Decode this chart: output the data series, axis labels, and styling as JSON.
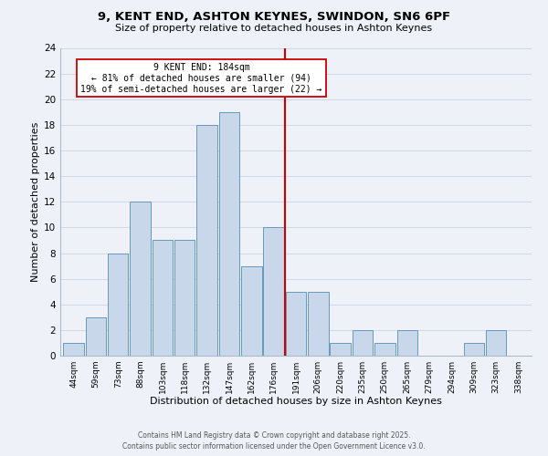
{
  "title": "9, KENT END, ASHTON KEYNES, SWINDON, SN6 6PF",
  "subtitle": "Size of property relative to detached houses in Ashton Keynes",
  "xlabel": "Distribution of detached houses by size in Ashton Keynes",
  "ylabel": "Number of detached properties",
  "bar_labels": [
    "44sqm",
    "59sqm",
    "73sqm",
    "88sqm",
    "103sqm",
    "118sqm",
    "132sqm",
    "147sqm",
    "162sqm",
    "176sqm",
    "191sqm",
    "206sqm",
    "220sqm",
    "235sqm",
    "250sqm",
    "265sqm",
    "279sqm",
    "294sqm",
    "309sqm",
    "323sqm",
    "338sqm"
  ],
  "bar_values": [
    1,
    3,
    8,
    12,
    9,
    9,
    18,
    19,
    7,
    10,
    5,
    5,
    1,
    2,
    1,
    2,
    0,
    0,
    1,
    2,
    0
  ],
  "bar_color": "#c8d8ea",
  "bar_edge_color": "#6699bb",
  "vline_color": "#cc0000",
  "annotation_title": "9 KENT END: 184sqm",
  "annotation_line1": "← 81% of detached houses are smaller (94)",
  "annotation_line2": "19% of semi-detached houses are larger (22) →",
  "annotation_box_color": "#ffffff",
  "annotation_box_edge": "#cc0000",
  "ylim": [
    0,
    24
  ],
  "yticks": [
    0,
    2,
    4,
    6,
    8,
    10,
    12,
    14,
    16,
    18,
    20,
    22,
    24
  ],
  "grid_color": "#ccd8e8",
  "background_color": "#eef2f8",
  "footer1": "Contains HM Land Registry data © Crown copyright and database right 2025.",
  "footer2": "Contains public sector information licensed under the Open Government Licence v3.0."
}
